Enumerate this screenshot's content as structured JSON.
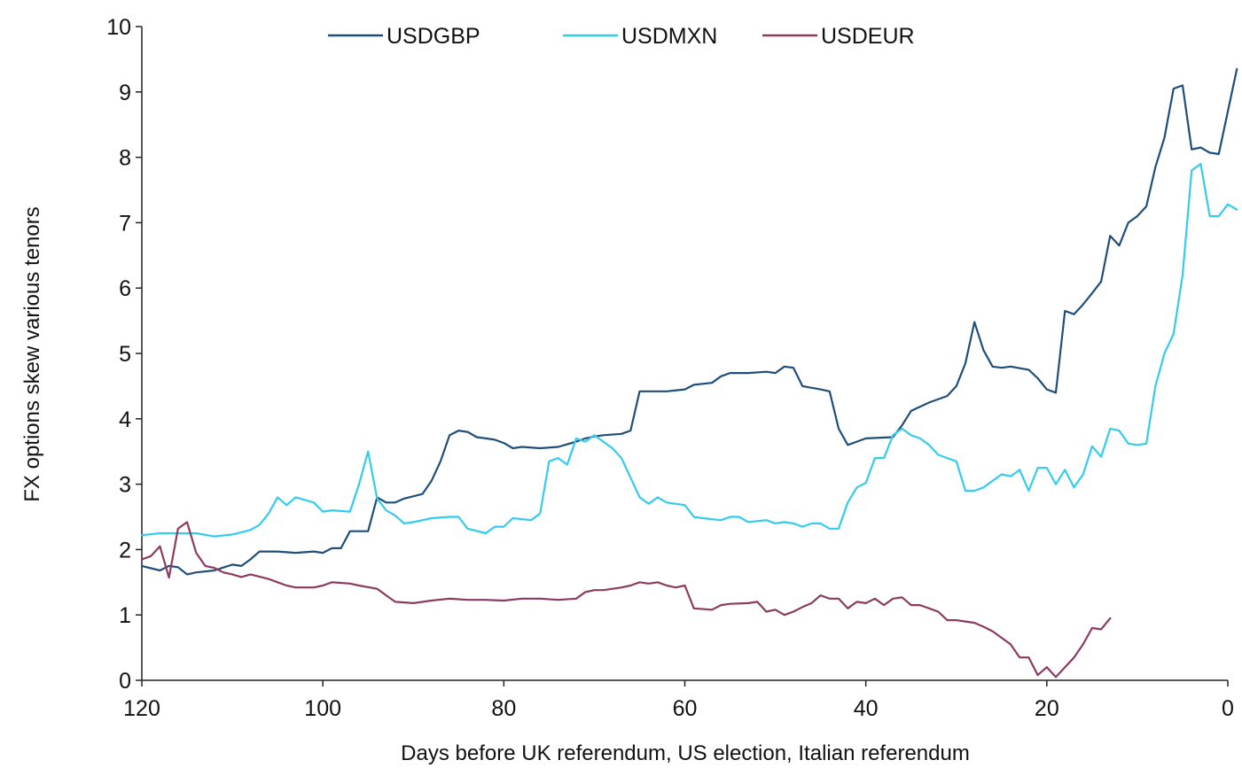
{
  "chart_data": {
    "type": "line",
    "xlabel": "Days before UK referendum, US election, Italian referendum",
    "ylabel": "FX options skew various tenors",
    "xlim": [
      120,
      0
    ],
    "ylim": [
      0,
      10
    ],
    "x_ticks": [
      120,
      100,
      80,
      60,
      40,
      20,
      0
    ],
    "y_ticks": [
      0,
      1,
      2,
      3,
      4,
      5,
      6,
      7,
      8,
      9,
      10
    ],
    "grid": false,
    "legend_position": "top-center",
    "series": [
      {
        "name": "USDGBP",
        "color": "#1f4e79",
        "points": [
          [
            120,
            1.75
          ],
          [
            118,
            1.68
          ],
          [
            117,
            1.75
          ],
          [
            116,
            1.73
          ],
          [
            115,
            1.62
          ],
          [
            114,
            1.65
          ],
          [
            112,
            1.68
          ],
          [
            110,
            1.77
          ],
          [
            109,
            1.75
          ],
          [
            108,
            1.85
          ],
          [
            107,
            1.97
          ],
          [
            105,
            1.97
          ],
          [
            103,
            1.95
          ],
          [
            101,
            1.97
          ],
          [
            100,
            1.95
          ],
          [
            99,
            2.02
          ],
          [
            98,
            2.02
          ],
          [
            97,
            2.28
          ],
          [
            95,
            2.28
          ],
          [
            94,
            2.8
          ],
          [
            93,
            2.72
          ],
          [
            92,
            2.72
          ],
          [
            91,
            2.78
          ],
          [
            89,
            2.85
          ],
          [
            88,
            3.05
          ],
          [
            87,
            3.35
          ],
          [
            86,
            3.75
          ],
          [
            85,
            3.82
          ],
          [
            84,
            3.8
          ],
          [
            83,
            3.72
          ],
          [
            82,
            3.7
          ],
          [
            81,
            3.68
          ],
          [
            80,
            3.63
          ],
          [
            79,
            3.55
          ],
          [
            78,
            3.57
          ],
          [
            76,
            3.55
          ],
          [
            74,
            3.57
          ],
          [
            72,
            3.65
          ],
          [
            71,
            3.7
          ],
          [
            70,
            3.73
          ],
          [
            69,
            3.75
          ],
          [
            67,
            3.77
          ],
          [
            66,
            3.82
          ],
          [
            65,
            4.42
          ],
          [
            62,
            4.42
          ],
          [
            60,
            4.45
          ],
          [
            59,
            4.52
          ],
          [
            57,
            4.55
          ],
          [
            56,
            4.65
          ],
          [
            55,
            4.7
          ],
          [
            53,
            4.7
          ],
          [
            51,
            4.72
          ],
          [
            50,
            4.7
          ],
          [
            49,
            4.8
          ],
          [
            48,
            4.78
          ],
          [
            47,
            4.5
          ],
          [
            45,
            4.45
          ],
          [
            44,
            4.42
          ],
          [
            43,
            3.85
          ],
          [
            42,
            3.6
          ],
          [
            41,
            3.65
          ],
          [
            40,
            3.7
          ],
          [
            37,
            3.72
          ],
          [
            36,
            3.9
          ],
          [
            35,
            4.12
          ],
          [
            33,
            4.25
          ],
          [
            31,
            4.35
          ],
          [
            30,
            4.5
          ],
          [
            29,
            4.85
          ],
          [
            28,
            5.48
          ],
          [
            27,
            5.05
          ],
          [
            26,
            4.8
          ],
          [
            25,
            4.78
          ],
          [
            24,
            4.8
          ],
          [
            22,
            4.75
          ],
          [
            21,
            4.62
          ],
          [
            20,
            4.45
          ],
          [
            19,
            4.4
          ],
          [
            18,
            5.65
          ],
          [
            17,
            5.6
          ],
          [
            16,
            5.75
          ],
          [
            15,
            5.92
          ],
          [
            14,
            6.1
          ],
          [
            13,
            6.8
          ],
          [
            12,
            6.65
          ],
          [
            11,
            7.0
          ],
          [
            10,
            7.1
          ],
          [
            9,
            7.25
          ],
          [
            8,
            7.85
          ],
          [
            7,
            8.3
          ],
          [
            6,
            9.05
          ],
          [
            5,
            9.1
          ],
          [
            4,
            8.12
          ],
          [
            3,
            8.15
          ],
          [
            2,
            8.07
          ],
          [
            1,
            8.05
          ],
          [
            0,
            8.7
          ],
          [
            -1,
            9.35
          ]
        ]
      },
      {
        "name": "USDMXN",
        "color": "#33ccee",
        "points": [
          [
            120,
            2.22
          ],
          [
            118,
            2.25
          ],
          [
            116,
            2.25
          ],
          [
            114,
            2.25
          ],
          [
            112,
            2.2
          ],
          [
            110,
            2.23
          ],
          [
            108,
            2.3
          ],
          [
            107,
            2.38
          ],
          [
            106,
            2.55
          ],
          [
            105,
            2.8
          ],
          [
            104,
            2.68
          ],
          [
            103,
            2.8
          ],
          [
            101,
            2.72
          ],
          [
            100,
            2.58
          ],
          [
            99,
            2.6
          ],
          [
            97,
            2.58
          ],
          [
            96,
            3.0
          ],
          [
            95,
            3.5
          ],
          [
            94,
            2.78
          ],
          [
            93,
            2.6
          ],
          [
            92,
            2.52
          ],
          [
            91,
            2.4
          ],
          [
            90,
            2.42
          ],
          [
            88,
            2.48
          ],
          [
            86,
            2.5
          ],
          [
            85,
            2.5
          ],
          [
            84,
            2.32
          ],
          [
            82,
            2.25
          ],
          [
            81,
            2.35
          ],
          [
            80,
            2.35
          ],
          [
            79,
            2.48
          ],
          [
            77,
            2.45
          ],
          [
            76,
            2.55
          ],
          [
            75,
            3.35
          ],
          [
            74,
            3.4
          ],
          [
            73,
            3.3
          ],
          [
            72,
            3.7
          ],
          [
            71,
            3.65
          ],
          [
            70,
            3.75
          ],
          [
            69,
            3.65
          ],
          [
            68,
            3.55
          ],
          [
            67,
            3.4
          ],
          [
            66,
            3.1
          ],
          [
            65,
            2.8
          ],
          [
            64,
            2.7
          ],
          [
            63,
            2.8
          ],
          [
            62,
            2.72
          ],
          [
            60,
            2.68
          ],
          [
            59,
            2.5
          ],
          [
            58,
            2.48
          ],
          [
            56,
            2.45
          ],
          [
            55,
            2.5
          ],
          [
            54,
            2.5
          ],
          [
            53,
            2.42
          ],
          [
            51,
            2.45
          ],
          [
            50,
            2.4
          ],
          [
            49,
            2.42
          ],
          [
            48,
            2.4
          ],
          [
            47,
            2.35
          ],
          [
            46,
            2.4
          ],
          [
            45,
            2.4
          ],
          [
            44,
            2.32
          ],
          [
            43,
            2.32
          ],
          [
            42,
            2.72
          ],
          [
            41,
            2.95
          ],
          [
            40,
            3.02
          ],
          [
            39,
            3.4
          ],
          [
            38,
            3.4
          ],
          [
            37,
            3.75
          ],
          [
            36,
            3.85
          ],
          [
            35,
            3.75
          ],
          [
            34,
            3.7
          ],
          [
            33,
            3.6
          ],
          [
            32,
            3.45
          ],
          [
            31,
            3.4
          ],
          [
            30,
            3.35
          ],
          [
            29,
            2.9
          ],
          [
            28,
            2.9
          ],
          [
            27,
            2.95
          ],
          [
            26,
            3.05
          ],
          [
            25,
            3.15
          ],
          [
            24,
            3.12
          ],
          [
            23,
            3.22
          ],
          [
            22,
            2.9
          ],
          [
            21,
            3.25
          ],
          [
            20,
            3.25
          ],
          [
            19,
            3.0
          ],
          [
            18,
            3.22
          ],
          [
            17,
            2.95
          ],
          [
            16,
            3.15
          ],
          [
            15,
            3.58
          ],
          [
            14,
            3.42
          ],
          [
            13,
            3.85
          ],
          [
            12,
            3.82
          ],
          [
            11,
            3.62
          ],
          [
            10,
            3.6
          ],
          [
            9,
            3.62
          ],
          [
            8,
            4.5
          ],
          [
            7,
            5.0
          ],
          [
            6,
            5.3
          ],
          [
            5,
            6.2
          ],
          [
            4,
            7.8
          ],
          [
            3,
            7.9
          ],
          [
            2,
            7.1
          ],
          [
            1,
            7.1
          ],
          [
            0,
            7.28
          ],
          [
            -1,
            7.2
          ]
        ]
      },
      {
        "name": "USDEUR",
        "color": "#8b3a62",
        "points": [
          [
            120,
            1.85
          ],
          [
            119,
            1.9
          ],
          [
            118,
            2.05
          ],
          [
            117,
            1.57
          ],
          [
            116,
            2.32
          ],
          [
            115,
            2.42
          ],
          [
            114,
            1.95
          ],
          [
            113,
            1.75
          ],
          [
            112,
            1.72
          ],
          [
            111,
            1.65
          ],
          [
            110,
            1.62
          ],
          [
            109,
            1.58
          ],
          [
            108,
            1.62
          ],
          [
            106,
            1.55
          ],
          [
            105,
            1.5
          ],
          [
            104,
            1.45
          ],
          [
            103,
            1.42
          ],
          [
            101,
            1.42
          ],
          [
            100,
            1.45
          ],
          [
            99,
            1.5
          ],
          [
            97,
            1.48
          ],
          [
            96,
            1.45
          ],
          [
            94,
            1.4
          ],
          [
            93,
            1.3
          ],
          [
            92,
            1.2
          ],
          [
            90,
            1.18
          ],
          [
            88,
            1.22
          ],
          [
            86,
            1.25
          ],
          [
            84,
            1.23
          ],
          [
            82,
            1.23
          ],
          [
            80,
            1.22
          ],
          [
            78,
            1.25
          ],
          [
            76,
            1.25
          ],
          [
            74,
            1.23
          ],
          [
            72,
            1.25
          ],
          [
            71,
            1.35
          ],
          [
            70,
            1.38
          ],
          [
            69,
            1.38
          ],
          [
            67,
            1.42
          ],
          [
            66,
            1.45
          ],
          [
            65,
            1.5
          ],
          [
            64,
            1.48
          ],
          [
            63,
            1.5
          ],
          [
            62,
            1.45
          ],
          [
            61,
            1.42
          ],
          [
            60,
            1.45
          ],
          [
            59,
            1.1
          ],
          [
            57,
            1.08
          ],
          [
            56,
            1.15
          ],
          [
            55,
            1.17
          ],
          [
            53,
            1.18
          ],
          [
            52,
            1.2
          ],
          [
            51,
            1.05
          ],
          [
            50,
            1.08
          ],
          [
            49,
            1.0
          ],
          [
            48,
            1.05
          ],
          [
            47,
            1.12
          ],
          [
            46,
            1.18
          ],
          [
            45,
            1.3
          ],
          [
            44,
            1.25
          ],
          [
            43,
            1.25
          ],
          [
            42,
            1.1
          ],
          [
            41,
            1.2
          ],
          [
            40,
            1.18
          ],
          [
            39,
            1.25
          ],
          [
            38,
            1.15
          ],
          [
            37,
            1.25
          ],
          [
            36,
            1.27
          ],
          [
            35,
            1.15
          ],
          [
            34,
            1.15
          ],
          [
            33,
            1.1
          ],
          [
            32,
            1.05
          ],
          [
            31,
            0.92
          ],
          [
            30,
            0.92
          ],
          [
            29,
            0.9
          ],
          [
            28,
            0.88
          ],
          [
            27,
            0.82
          ],
          [
            26,
            0.75
          ],
          [
            25,
            0.65
          ],
          [
            24,
            0.55
          ],
          [
            23,
            0.35
          ],
          [
            22,
            0.35
          ],
          [
            21,
            0.08
          ],
          [
            20,
            0.2
          ],
          [
            19,
            0.05
          ],
          [
            18,
            0.2
          ],
          [
            17,
            0.35
          ],
          [
            16,
            0.55
          ],
          [
            15,
            0.8
          ],
          [
            14,
            0.78
          ],
          [
            13,
            0.95
          ]
        ]
      }
    ]
  }
}
